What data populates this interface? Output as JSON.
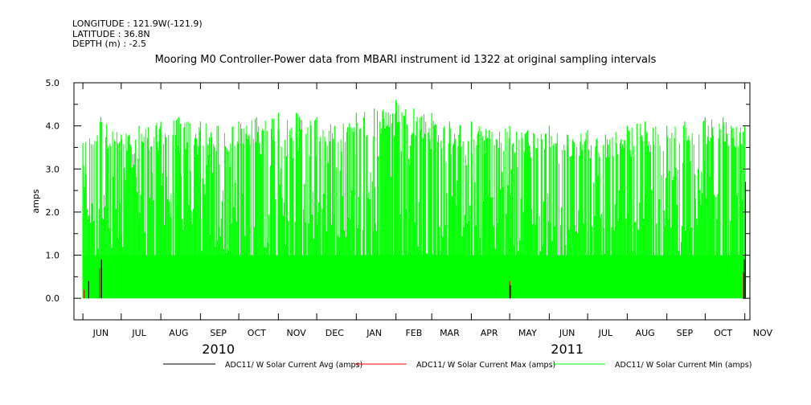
{
  "header": {
    "longitude": "LONGITUDE : 121.9W(-121.9)",
    "latitude": "LATITUDE : 36.8N",
    "depth": "DEPTH (m) : -2.5",
    "title": "Mooring M0 Controller-Power data from MBARI instrument id 1322 at original sampling intervals"
  },
  "chart_data": {
    "type": "line",
    "title": "Mooring M0 Controller-Power data from MBARI instrument id 1322 at original sampling intervals",
    "xlabel": "",
    "ylabel": "amps",
    "ylim": [
      -0.5,
      5.0
    ],
    "y_ticks": [
      "0.0",
      "1.0",
      "2.0",
      "3.0",
      "4.0",
      "5.0"
    ],
    "x_ticks": [
      "JUN",
      "JUL",
      "AUG",
      "SEP",
      "OCT",
      "NOV",
      "DEC",
      "JAN",
      "FEB",
      "MAR",
      "APR",
      "MAY",
      "JUN",
      "JUL",
      "AUG",
      "SEP",
      "OCT",
      "NOV"
    ],
    "x_years": [
      "2010",
      "2011"
    ],
    "xlim": [
      "2010-05-25",
      "2011-11-05"
    ],
    "series": [
      {
        "name": "ADC11/ W Solar Current Avg (amps)",
        "color": "#000000",
        "values": [
          {
            "date": "2010-06-01",
            "y": 0.0
          },
          {
            "date": "2010-06-05",
            "y": 0.4
          },
          {
            "date": "2010-06-15",
            "y": 0.9
          },
          {
            "date": "2011-05-01",
            "y": 0.3
          },
          {
            "date": "2011-10-31",
            "y": 0.9
          },
          {
            "date": "2011-11-01",
            "y": 2.7
          }
        ]
      },
      {
        "name": "ADC11/ W Solar Current Max (amps)",
        "color": "#ff0000",
        "values": [
          {
            "date": "2010-06-02",
            "y": 0.2
          },
          {
            "date": "2010-06-14",
            "y": 0.7
          },
          {
            "date": "2011-05-01",
            "y": 0.4
          },
          {
            "date": "2011-10-31",
            "y": 0.6
          }
        ]
      },
      {
        "name": "ADC11/ W Solar Current Min (amps)",
        "color": "#00ff00",
        "values": [
          {
            "date": "2010-06-01",
            "y": 3.6
          },
          {
            "date": "2010-06-15",
            "y": 4.2
          },
          {
            "date": "2010-07-01",
            "y": 3.8
          },
          {
            "date": "2010-07-15",
            "y": 4.0
          },
          {
            "date": "2010-08-01",
            "y": 4.1
          },
          {
            "date": "2010-08-15",
            "y": 4.2
          },
          {
            "date": "2010-09-01",
            "y": 4.1
          },
          {
            "date": "2010-09-15",
            "y": 4.0
          },
          {
            "date": "2010-10-01",
            "y": 4.1
          },
          {
            "date": "2010-10-15",
            "y": 4.2
          },
          {
            "date": "2010-11-01",
            "y": 4.3
          },
          {
            "date": "2010-11-15",
            "y": 4.3
          },
          {
            "date": "2010-12-01",
            "y": 4.2
          },
          {
            "date": "2010-12-15",
            "y": 4.0
          },
          {
            "date": "2011-01-01",
            "y": 4.3
          },
          {
            "date": "2011-01-15",
            "y": 4.4
          },
          {
            "date": "2011-02-01",
            "y": 4.6
          },
          {
            "date": "2011-02-15",
            "y": 4.4
          },
          {
            "date": "2011-03-01",
            "y": 4.3
          },
          {
            "date": "2011-03-15",
            "y": 4.1
          },
          {
            "date": "2011-04-01",
            "y": 4.1
          },
          {
            "date": "2011-04-15",
            "y": 3.9
          },
          {
            "date": "2011-05-01",
            "y": 4.0
          },
          {
            "date": "2011-05-15",
            "y": 3.9
          },
          {
            "date": "2011-06-01",
            "y": 4.0
          },
          {
            "date": "2011-06-15",
            "y": 3.8
          },
          {
            "date": "2011-07-01",
            "y": 3.9
          },
          {
            "date": "2011-07-15",
            "y": 3.8
          },
          {
            "date": "2011-08-01",
            "y": 4.0
          },
          {
            "date": "2011-08-15",
            "y": 4.1
          },
          {
            "date": "2011-09-01",
            "y": 4.0
          },
          {
            "date": "2011-09-15",
            "y": 4.1
          },
          {
            "date": "2011-10-01",
            "y": 4.2
          },
          {
            "date": "2011-10-15",
            "y": 4.2
          },
          {
            "date": "2011-11-01",
            "y": 4.0
          }
        ]
      }
    ],
    "grid": false,
    "legend_position": "bottom"
  },
  "colors": {
    "axis": "#000000",
    "avg": "#000000",
    "max": "#ff0000",
    "min": "#00ff00"
  }
}
